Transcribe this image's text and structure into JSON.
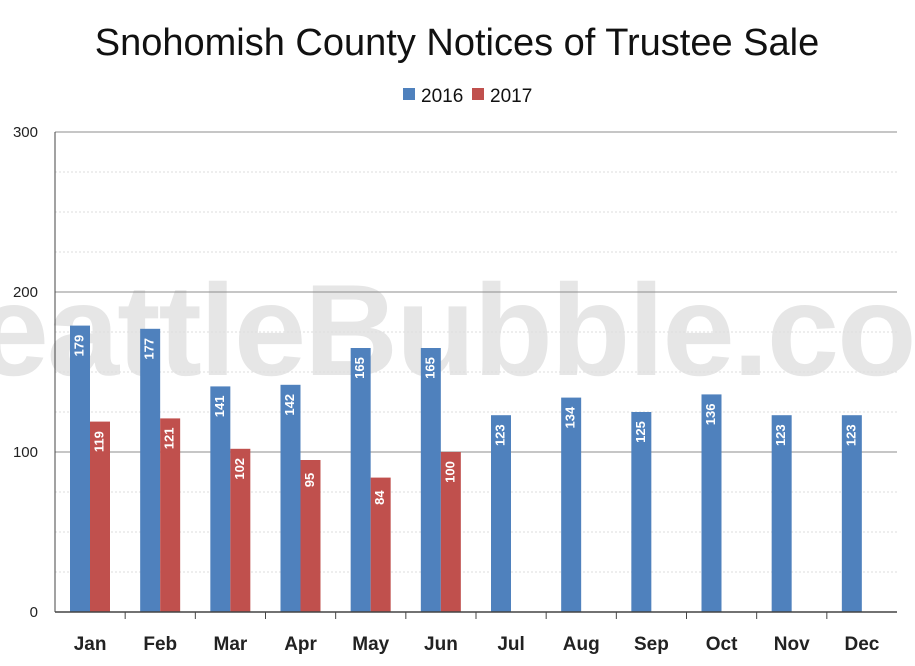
{
  "watermark": "SeattleBubble.com",
  "colors": {
    "s2016": "#4f81bd",
    "s2017": "#c0504d",
    "grid_major": "#8c8c8c",
    "grid_minor": "#dddddd",
    "axis": "#444444"
  },
  "chart_data": {
    "type": "bar",
    "title": "Snohomish County Notices of Trustee Sale",
    "categories": [
      "Jan",
      "Feb",
      "Mar",
      "Apr",
      "May",
      "Jun",
      "Jul",
      "Aug",
      "Sep",
      "Oct",
      "Nov",
      "Dec"
    ],
    "series": [
      {
        "name": "2016",
        "values": [
          179,
          177,
          141,
          142,
          165,
          165,
          123,
          134,
          125,
          136,
          123,
          123
        ]
      },
      {
        "name": "2017",
        "values": [
          119,
          121,
          102,
          95,
          84,
          100,
          null,
          null,
          null,
          null,
          null,
          null
        ]
      }
    ],
    "ylim": [
      0,
      300
    ],
    "yticks": [
      0,
      100,
      200,
      300
    ],
    "legend_position": "top-center",
    "grid": true
  }
}
